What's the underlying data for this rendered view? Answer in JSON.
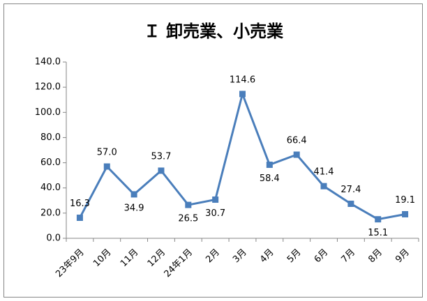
{
  "chart_data": {
    "type": "line",
    "title": "Ｉ 卸売業、小売業",
    "categories": [
      "23年9月",
      "10月",
      "11月",
      "12月",
      "24年1月",
      "2月",
      "3月",
      "4月",
      "5月",
      "6月",
      "7月",
      "8月",
      "9月"
    ],
    "series": [
      {
        "name": "卸売業、小売業",
        "color": "#4a7ebb",
        "values": [
          16.3,
          57,
          34.9,
          53.7,
          26.5,
          30.7,
          114.6,
          58.4,
          66.4,
          41.4,
          27.4,
          15.1,
          19.1
        ],
        "value_labels": [
          "16.3",
          "57.0",
          "34.9",
          "53.7",
          "26.5",
          "30.7",
          "114.6",
          "58.4",
          "66.4",
          "41.4",
          "27.4",
          "15.1",
          "19.1"
        ]
      }
    ],
    "ylim": [
      0,
      140
    ],
    "yticks": [
      {
        "value": 0,
        "label": "0.0"
      },
      {
        "value": 20,
        "label": "20.0"
      },
      {
        "value": 40,
        "label": "40.0"
      },
      {
        "value": 60,
        "label": "60.0"
      },
      {
        "value": 80,
        "label": "80.0"
      },
      {
        "value": 100,
        "label": "100.0"
      },
      {
        "value": 120,
        "label": "120.0"
      },
      {
        "value": 140,
        "label": "140.0"
      }
    ],
    "grid": false
  }
}
